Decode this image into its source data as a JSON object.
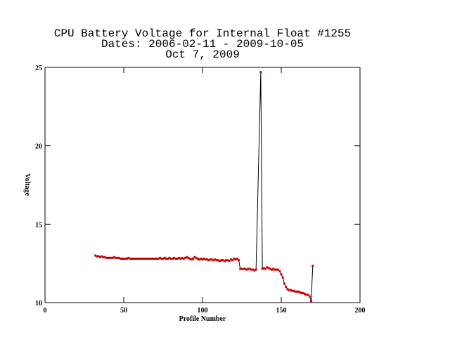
{
  "chart_data": {
    "type": "line",
    "title": [
      "CPU Battery Voltage for Internal Float #1255",
      "Dates:  2006-02-11 -  2009-10-05",
      "Oct  7, 2009"
    ],
    "x_label": "Profile Number",
    "y_label": "Voltage",
    "xlim": [
      0,
      200
    ],
    "xticks": [
      0,
      50,
      100,
      150,
      200
    ],
    "ylim": [
      10,
      25
    ],
    "yticks": [
      10,
      15,
      20,
      25
    ],
    "line_color": "#000000",
    "marker_color": "#cc0000",
    "x": [
      32,
      33,
      34,
      35,
      36,
      37,
      38,
      39,
      40,
      41,
      42,
      43,
      44,
      45,
      46,
      47,
      48,
      49,
      50,
      51,
      52,
      53,
      54,
      55,
      56,
      57,
      58,
      59,
      60,
      61,
      62,
      63,
      64,
      65,
      66,
      67,
      68,
      69,
      70,
      71,
      72,
      73,
      74,
      75,
      76,
      77,
      78,
      79,
      80,
      81,
      82,
      83,
      84,
      85,
      86,
      87,
      88,
      89,
      90,
      91,
      92,
      93,
      94,
      95,
      96,
      97,
      98,
      99,
      100,
      101,
      102,
      103,
      104,
      105,
      106,
      107,
      108,
      109,
      110,
      111,
      112,
      113,
      114,
      115,
      116,
      117,
      118,
      119,
      120,
      121,
      122,
      123,
      124,
      125,
      126,
      127,
      128,
      129,
      130,
      131,
      132,
      133,
      134,
      137,
      138,
      139,
      140,
      141,
      142,
      143,
      144,
      145,
      146,
      147,
      148,
      149,
      150,
      151,
      152,
      153,
      154,
      155,
      156,
      157,
      158,
      159,
      160,
      161,
      162,
      163,
      164,
      165,
      166,
      167,
      168,
      169,
      170
    ],
    "values": [
      13.0,
      12.95,
      12.95,
      12.9,
      12.95,
      12.9,
      12.9,
      12.85,
      12.85,
      12.85,
      12.85,
      12.85,
      12.9,
      12.85,
      12.85,
      12.85,
      12.8,
      12.8,
      12.8,
      12.8,
      12.8,
      12.85,
      12.8,
      12.8,
      12.8,
      12.8,
      12.8,
      12.8,
      12.8,
      12.8,
      12.8,
      12.8,
      12.8,
      12.8,
      12.8,
      12.8,
      12.8,
      12.8,
      12.8,
      12.8,
      12.8,
      12.85,
      12.8,
      12.8,
      12.85,
      12.8,
      12.8,
      12.85,
      12.8,
      12.8,
      12.85,
      12.8,
      12.8,
      12.85,
      12.8,
      12.85,
      12.8,
      12.85,
      12.9,
      12.85,
      12.8,
      12.75,
      12.8,
      12.9,
      12.85,
      12.8,
      12.75,
      12.8,
      12.75,
      12.8,
      12.75,
      12.75,
      12.7,
      12.75,
      12.75,
      12.7,
      12.75,
      12.7,
      12.7,
      12.65,
      12.7,
      12.7,
      12.65,
      12.7,
      12.7,
      12.65,
      12.75,
      12.7,
      12.8,
      12.75,
      12.8,
      12.7,
      12.15,
      12.15,
      12.15,
      12.15,
      12.1,
      12.15,
      12.15,
      12.1,
      12.1,
      12.05,
      12.1,
      24.7,
      12.15,
      12.2,
      12.15,
      12.25,
      12.2,
      12.15,
      12.1,
      12.15,
      12.1,
      12.1,
      12.1,
      12.0,
      11.8,
      11.6,
      11.2,
      11.0,
      10.85,
      10.8,
      10.8,
      10.75,
      10.75,
      10.7,
      10.7,
      10.7,
      10.65,
      10.6,
      10.6,
      10.55,
      10.5,
      10.5,
      10.4,
      10.1,
      12.35
    ]
  }
}
